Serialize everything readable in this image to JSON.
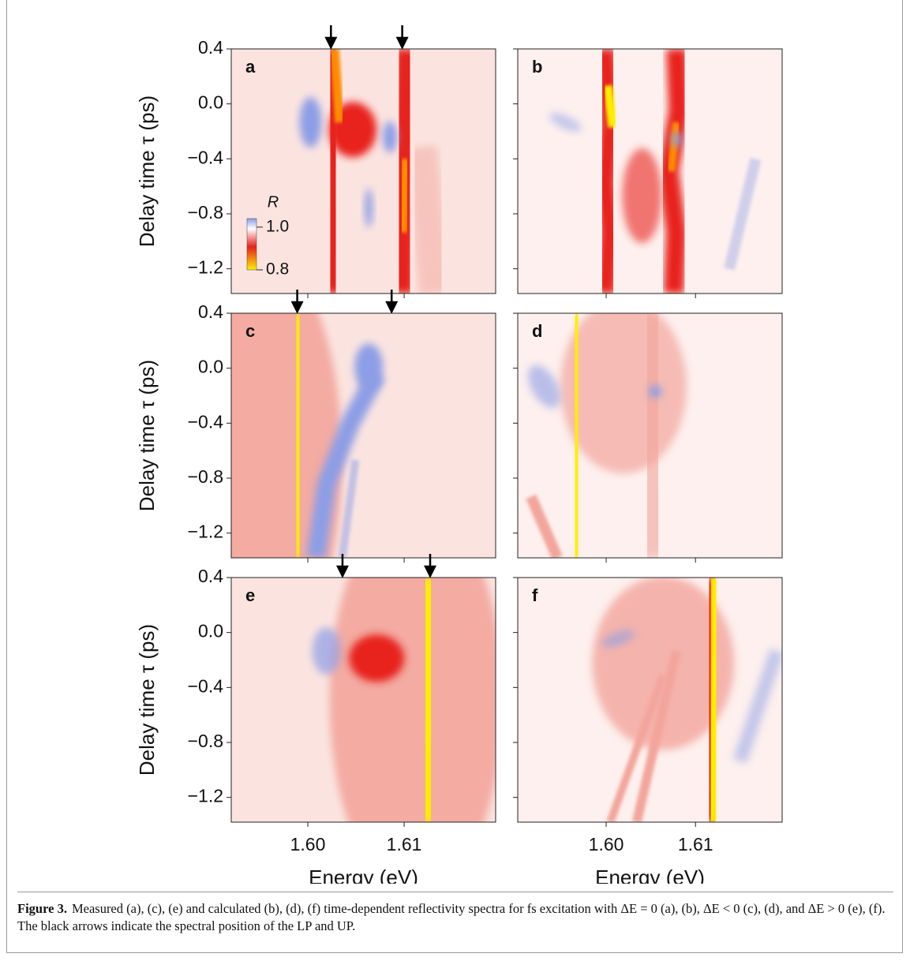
{
  "chart_data": [
    {
      "type": "heatmap",
      "panel": "a",
      "ylabel": "Delay time τ (ps)",
      "xlim": [
        1.59205,
        1.6195
      ],
      "ylim": [
        -1.38,
        0.4
      ],
      "xticks": [
        1.6,
        1.61
      ],
      "yticks": [
        0.4,
        {
          "value": 0,
          "label": "0.0"
        },
        {
          "value": -0.4,
          "label": "−0.4"
        },
        {
          "value": -0.8,
          "label": "−0.8"
        },
        {
          "value": -1.2,
          "label": "−1.2"
        }
      ],
      "arrows": [
        1.6024,
        1.6098
      ],
      "colorbar": {
        "label": "R",
        "clim": [
          0.8,
          1.04
        ],
        "ticks": [
          {
            "value": 1,
            "label": "1.0"
          },
          0.8
        ]
      }
    },
    {
      "type": "heatmap",
      "panel": "b",
      "xlim": [
        1.5901,
        1.6197
      ],
      "ylim": [
        -1.38,
        0.4
      ],
      "xticks": [
        1.6,
        1.61
      ],
      "yticks": [
        0.4,
        0,
        -0.4,
        -0.8,
        -1.2
      ]
    },
    {
      "type": "heatmap",
      "panel": "c",
      "ylabel": "Delay time τ (ps)",
      "xlim": [
        1.59205,
        1.6195
      ],
      "ylim": [
        -1.38,
        0.4
      ],
      "xticks": [
        1.6,
        1.61
      ],
      "yticks": [
        0.4,
        {
          "value": 0,
          "label": "0.0"
        },
        {
          "value": -0.4,
          "label": "−0.4"
        },
        {
          "value": -0.8,
          "label": "−0.8"
        },
        {
          "value": -1.2,
          "label": "−1.2"
        }
      ],
      "arrows": [
        1.5989,
        1.6087
      ]
    },
    {
      "type": "heatmap",
      "panel": "d",
      "xlim": [
        1.5901,
        1.6197
      ],
      "ylim": [
        -1.38,
        0.4
      ],
      "xticks": [
        1.6,
        1.61
      ],
      "yticks": [
        0.4,
        0,
        -0.4,
        -0.8,
        -1.2
      ]
    },
    {
      "type": "heatmap",
      "panel": "e",
      "ylabel": "Delay time τ (ps)",
      "xlabel": "Energy (eV)",
      "xlim": [
        1.59205,
        1.6195
      ],
      "ylim": [
        -1.38,
        0.4
      ],
      "xticks": [
        {
          "value": 1.6,
          "label": "1.60"
        },
        1.61
      ],
      "yticks": [
        0.4,
        {
          "value": 0,
          "label": "0.0"
        },
        {
          "value": -0.4,
          "label": "−0.4"
        },
        {
          "value": -0.8,
          "label": "−0.8"
        },
        {
          "value": -1.2,
          "label": "−1.2"
        }
      ],
      "arrows": [
        1.6036,
        1.6127
      ]
    },
    {
      "type": "heatmap",
      "panel": "f",
      "xlabel": "Energy (eV)",
      "xlim": [
        1.5901,
        1.6197
      ],
      "ylim": [
        -1.38,
        0.4
      ],
      "xticks": [
        {
          "value": 1.6,
          "label": "1.60"
        },
        1.61
      ],
      "yticks": [
        0.4,
        0,
        -0.4,
        -0.8,
        -1.2
      ]
    }
  ],
  "caption": {
    "label": "Figure 3.",
    "text": "Measured (a), (c), (e) and calculated (b), (d), (f) time-dependent reflectivity spectra for fs excitation with ΔE = 0 (a), (b), ΔE < 0 (c), (d), and ΔE > 0 (e), (f). The black arrows indicate the spectral position of the LP and UP."
  }
}
